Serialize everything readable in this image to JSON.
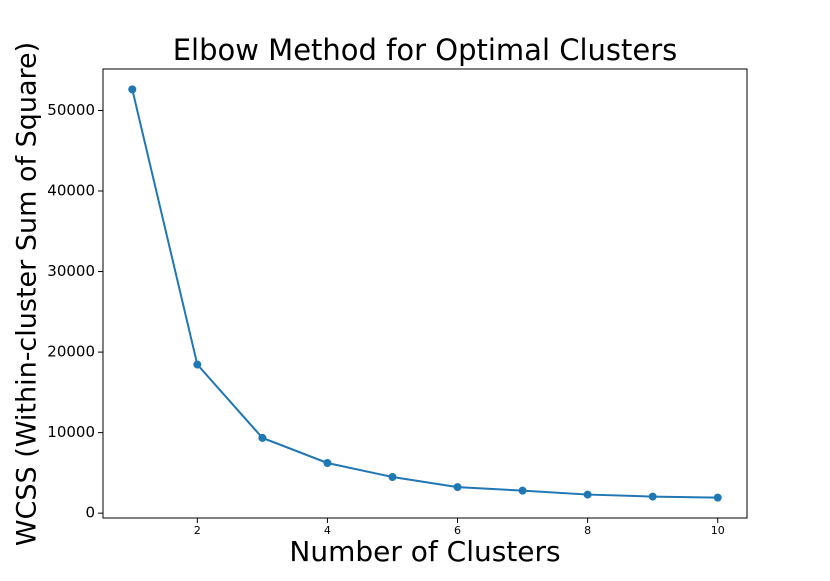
{
  "chart_data": {
    "type": "line",
    "title": "Elbow Method for Optimal Clusters",
    "x_label": "Number of Clusters",
    "y_label": "WCSS (Within-cluster Sum of Square)",
    "x": [
      1,
      2,
      3,
      4,
      5,
      6,
      7,
      8,
      9,
      10
    ],
    "series": [
      {
        "color": "#1f77b4",
        "values": [
          52620,
          18450,
          9350,
          6230,
          4490,
          3240,
          2800,
          2310,
          2060,
          1930
        ]
      }
    ],
    "xlim": [
      0.55,
      10.45
    ],
    "ylim": [
      -600,
      55150
    ],
    "xticks": [
      2,
      4,
      6,
      8,
      10
    ],
    "yticks": [
      0,
      10000,
      20000,
      30000,
      40000,
      50000
    ],
    "markers": true
  }
}
